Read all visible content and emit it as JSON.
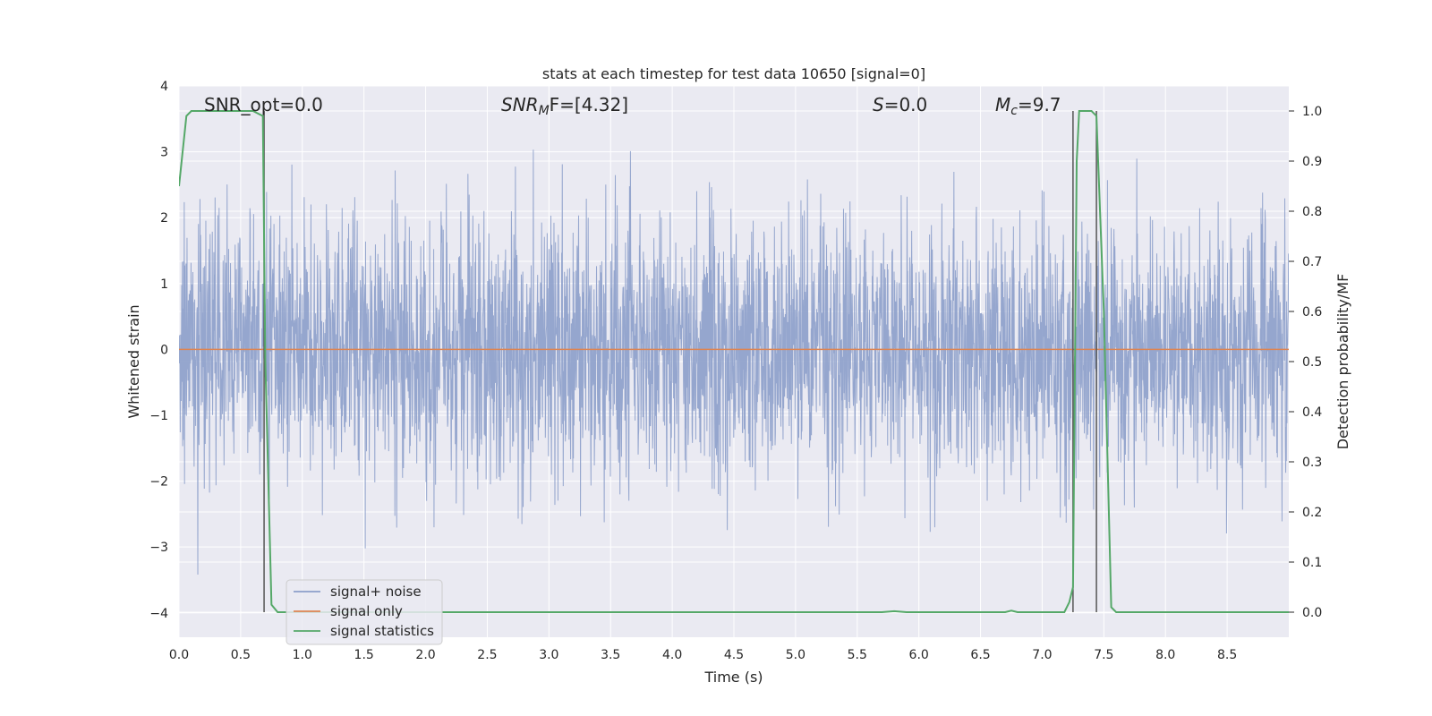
{
  "chart_data": {
    "type": "line",
    "title": "stats at each timestep for test data 10650 [signal=0]",
    "xlabel": "Time (s)",
    "ylabel_left": "Whitened strain",
    "ylabel_right": "Detection probability/MF",
    "xlim": [
      0.0,
      9.0
    ],
    "ylim_left": [
      -4.37,
      4.0
    ],
    "ylim_right": [
      -0.05,
      1.05
    ],
    "x_ticks": [
      "0.0",
      "0.5",
      "1.0",
      "1.5",
      "2.0",
      "2.5",
      "3.0",
      "3.5",
      "4.0",
      "4.5",
      "5.0",
      "5.5",
      "6.0",
      "6.5",
      "7.0",
      "7.5",
      "8.0",
      "8.5"
    ],
    "y_ticks_left": [
      "−4",
      "−3",
      "−2",
      "−1",
      "0",
      "1",
      "2",
      "3",
      "4"
    ],
    "y_ticks_right": [
      "0.0",
      "0.1",
      "0.2",
      "0.3",
      "0.4",
      "0.5",
      "0.6",
      "0.7",
      "0.8",
      "0.9",
      "1.0"
    ],
    "grid": true,
    "legend_position": "lower-left",
    "annotations": {
      "snr_opt": "SNR_opt=0.0",
      "snr_mf_main": "SNR",
      "snr_mf_sub": "M",
      "snr_mf_tail": "F=[4.32]",
      "s_main": "S",
      "s_tail": "=0.0",
      "mc_main": "M",
      "mc_sub": "c",
      "mc_tail": "=9.7"
    },
    "series": [
      {
        "name": "signal+ noise",
        "color": "#8c9fca",
        "kind": "noise",
        "note_envelope_left": [
          -2.6,
          2.9
        ]
      },
      {
        "name": "signal only",
        "color": "#dd8452",
        "x": [
          0.0,
          9.0
        ],
        "y": [
          0.0,
          0.0
        ]
      },
      {
        "name": "signal statistics",
        "color": "#55a868",
        "axis": "right",
        "x": [
          0.0,
          0.06,
          0.1,
          0.2,
          0.5,
          0.6,
          0.68,
          0.7,
          0.75,
          0.8,
          1.0,
          5.7,
          5.8,
          5.9,
          6.7,
          6.75,
          6.8,
          7.18,
          7.22,
          7.25,
          7.28,
          7.3,
          7.4,
          7.44,
          7.5,
          7.56,
          7.6,
          8.0,
          9.0
        ],
        "y": [
          0.85,
          0.99,
          1.0,
          1.0,
          1.0,
          1.0,
          0.99,
          0.5,
          0.015,
          0.0,
          0.0,
          0.0,
          0.002,
          0.0,
          0.0,
          0.003,
          0.0,
          0.0,
          0.02,
          0.05,
          0.9,
          1.0,
          1.0,
          0.99,
          0.6,
          0.01,
          0.0,
          0.0,
          0.0
        ]
      }
    ],
    "vertical_lines_x": [
      0.69,
      7.25,
      7.44
    ],
    "vertical_lines_color": "#555555"
  },
  "colors": {
    "plot_bg": "#eaeaf2",
    "grid": "#ffffff",
    "text": "#262626"
  }
}
